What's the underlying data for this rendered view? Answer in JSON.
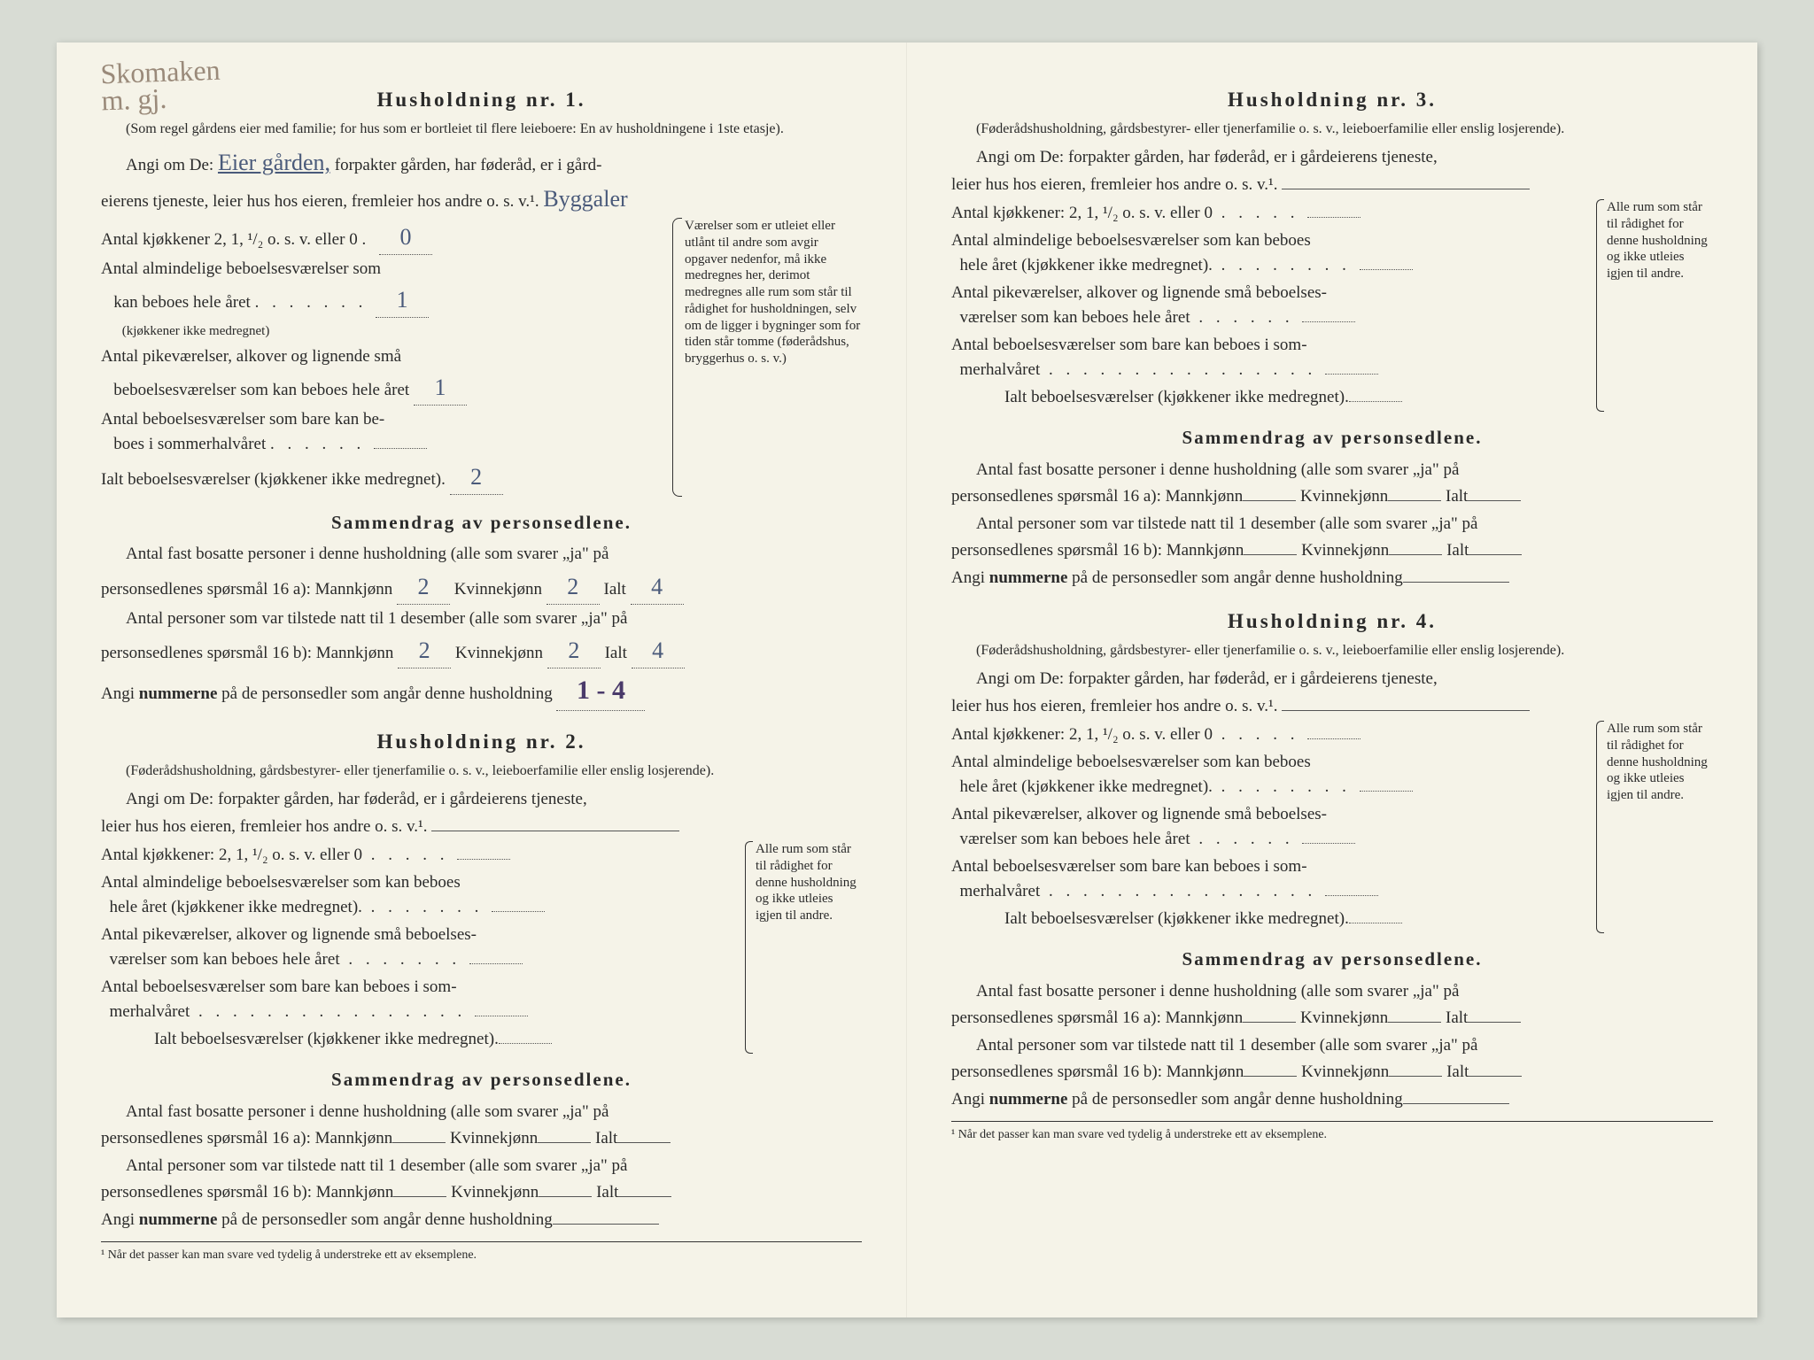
{
  "handwriting_topleft": "Skomaken\nm. gj.",
  "h1": {
    "title": "Husholdning nr. 1.",
    "subtitle": "(Som regel gårdens eier med familie; for hus som er bortleiet til flere leieboere: En av husholdningene i 1ste etasje).",
    "angi_prefix": "Angi om De:",
    "angi_hw": "Eier gården,",
    "angi_rest": "forpakter gården, har føderåd, er i gård-",
    "angi_line2": "eierens tjeneste, leier hus hos eieren, fremleier hos andre o. s. v.¹.",
    "angi_line2_hw": "Byggaler",
    "r1": "Antal kjøkkener 2, 1, ¹/₂ o. s. v. eller 0",
    "r1_val": "0",
    "r2a": "Antal almindelige beboelsesværelser som",
    "r2b": "kan beboes hele året",
    "r2_note": "(kjøkkener ikke medregnet)",
    "r2_val": "1",
    "r3a": "Antal pikeværelser, alkover og lignende små",
    "r3b": "beboelsesværelser som kan beboes hele året",
    "r3_val": "1",
    "r4a": "Antal beboelsesværelser som bare kan be-",
    "r4b": "boes i sommerhalvåret",
    "r4_val": "",
    "r5": "Ialt beboelsesværelser (kjøkkener ikke medregnet).",
    "r5_val": "2",
    "sidenote": "Værelser som er utleiet eller utlånt til andre som avgir opgaver nedenfor, må ikke medregnes her, derimot medregnes alle rum som står til rådighet for husholdningen, selv om de ligger i bygninger som for tiden står tomme (føderådshus, bryggerhus o. s. v.)",
    "sammendrag": "Sammendrag av personsedlene.",
    "s1a": "Antal fast bosatte personer i denne husholdning (alle som svarer „ja\" på",
    "s1b": "personsedlenes spørsmål 16 a): Mannkjønn",
    "s1_m": "2",
    "s1_k_lbl": "Kvinnekjønn",
    "s1_k": "2",
    "s1_i_lbl": "Ialt",
    "s1_i": "4",
    "s2a": "Antal personer som var tilstede natt til 1 desember (alle som svarer „ja\" på",
    "s2b": "personsedlenes spørsmål 16 b): Mannkjønn",
    "s2_m": "2",
    "s2_k": "2",
    "s2_i": "4",
    "s3": "Angi nummerne på de personsedler som angår denne husholdning",
    "s3_val": "1 - 4"
  },
  "h_template": {
    "subtitle": "(Føderådshusholdning, gårdsbestyrer- eller tjenerfamilie o. s. v., leieboerfamilie eller enslig losjerende).",
    "angi1": "Angi om De:   forpakter gården, har føderåd, er i gårdeierens tjeneste,",
    "angi2": "leier hus hos eieren, fremleier hos andre o. s. v.¹.",
    "r1": "Antal kjøkkener: 2, 1, ¹/₂ o. s. v. eller 0",
    "r2a": "Antal almindelige beboelsesværelser som kan beboes",
    "r2b": "hele året (kjøkkener ikke medregnet).",
    "r3a": "Antal pikeværelser, alkover og lignende små beboelses-",
    "r3b": "værelser som kan beboes hele året",
    "r4a": "Antal beboelsesværelser som bare kan beboes i som-",
    "r4b": "merhalvåret",
    "r5": "Ialt beboelsesværelser (kjøkkener ikke medregnet).",
    "sidenote": "Alle rum som står til rådighet for denne husholdning og ikke utleies igjen til andre.",
    "s1b_plain": "personsedlenes spørsmål 16 a): Mannkjønn",
    "s2b_plain": "personsedlenes spørsmål 16 b): Mannkjønn"
  },
  "titles": {
    "h2": "Husholdning nr. 2.",
    "h3": "Husholdning nr. 3.",
    "h4": "Husholdning nr. 4."
  },
  "footnote": "¹ Når det passer kan man svare ved tydelig å understreke ett av eksemplene.",
  "nummerne": "nummerne",
  "kvinne": "Kvinnekjønn",
  "ialt": "Ialt"
}
